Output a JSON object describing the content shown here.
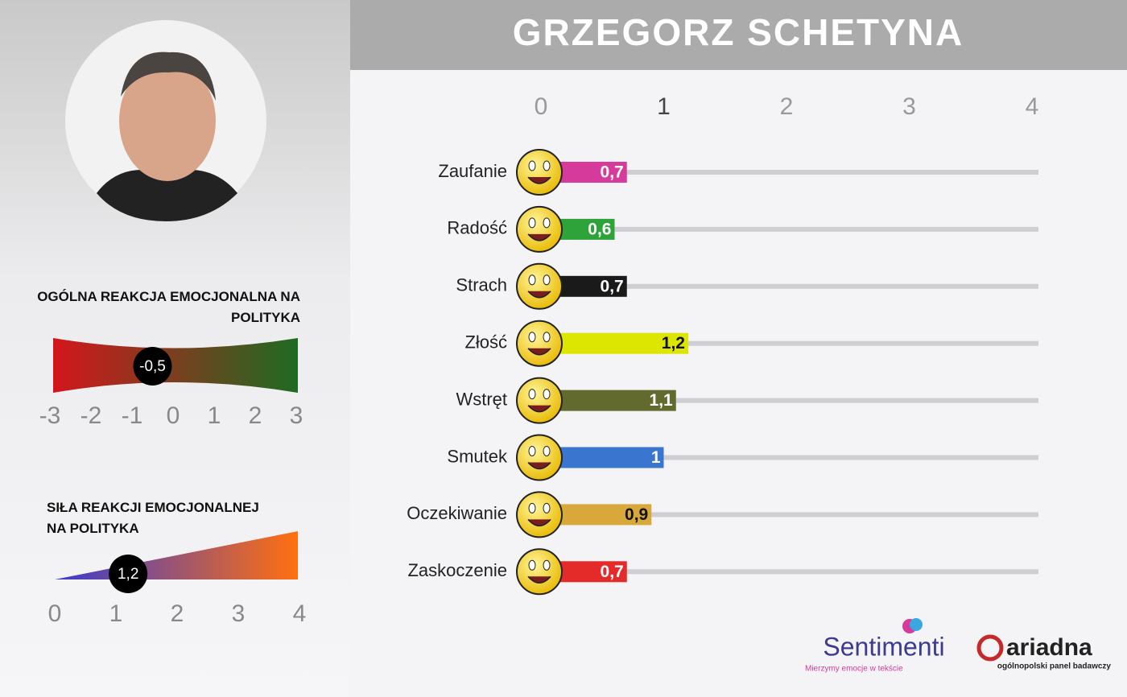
{
  "header": {
    "title": "GRZEGORZ SCHETYNA"
  },
  "chart_data": [
    {
      "type": "bar",
      "orientation": "horizontal",
      "categories": [
        "Zaufanie",
        "Radość",
        "Strach",
        "Złość",
        "Wstręt",
        "Smutek",
        "Oczekiwanie",
        "Zaskoczenie"
      ],
      "values": [
        0.7,
        0.6,
        0.7,
        1.2,
        1.1,
        1,
        0.9,
        0.7
      ],
      "value_labels": [
        "0,7",
        "0,6",
        "0,7",
        "1,2",
        "1,1",
        "1",
        "0,9",
        "0,7"
      ],
      "colors": [
        "#d63a9a",
        "#2ea33a",
        "#1a1a1a",
        "#dde600",
        "#636a2e",
        "#3a75d0",
        "#d9a83a",
        "#e52a2a"
      ],
      "xlim": [
        0,
        4
      ],
      "xticks": [
        0,
        1,
        2,
        3,
        4
      ]
    },
    {
      "type": "gauge",
      "title": "OGÓLNA REAKCJA EMOCJONALNA NA POLITYKA",
      "value": -0.5,
      "value_label": "-0,5",
      "colors": [
        "#d4161c",
        "#1e6a22"
      ],
      "xlim": [
        -3,
        3
      ],
      "xticks": [
        -3,
        -2,
        -1,
        0,
        1,
        2,
        3
      ]
    },
    {
      "type": "wedge",
      "title": "SIŁA REAKCJI EMOCJONALNEJ NA POLITYKA",
      "value": 1.2,
      "value_label": "1,2",
      "colors": [
        "#3a3ad0",
        "#ff7010"
      ],
      "xlim": [
        0,
        4
      ],
      "xticks": [
        0,
        1,
        2,
        3,
        4
      ]
    }
  ],
  "logos": {
    "sentimenti": "Sentimenti",
    "sentimenti_tagline": "Mierzymy emocje w tekście",
    "ariadna": "ariadna",
    "ariadna_tagline": "ogólnopolski panel badawczy"
  }
}
